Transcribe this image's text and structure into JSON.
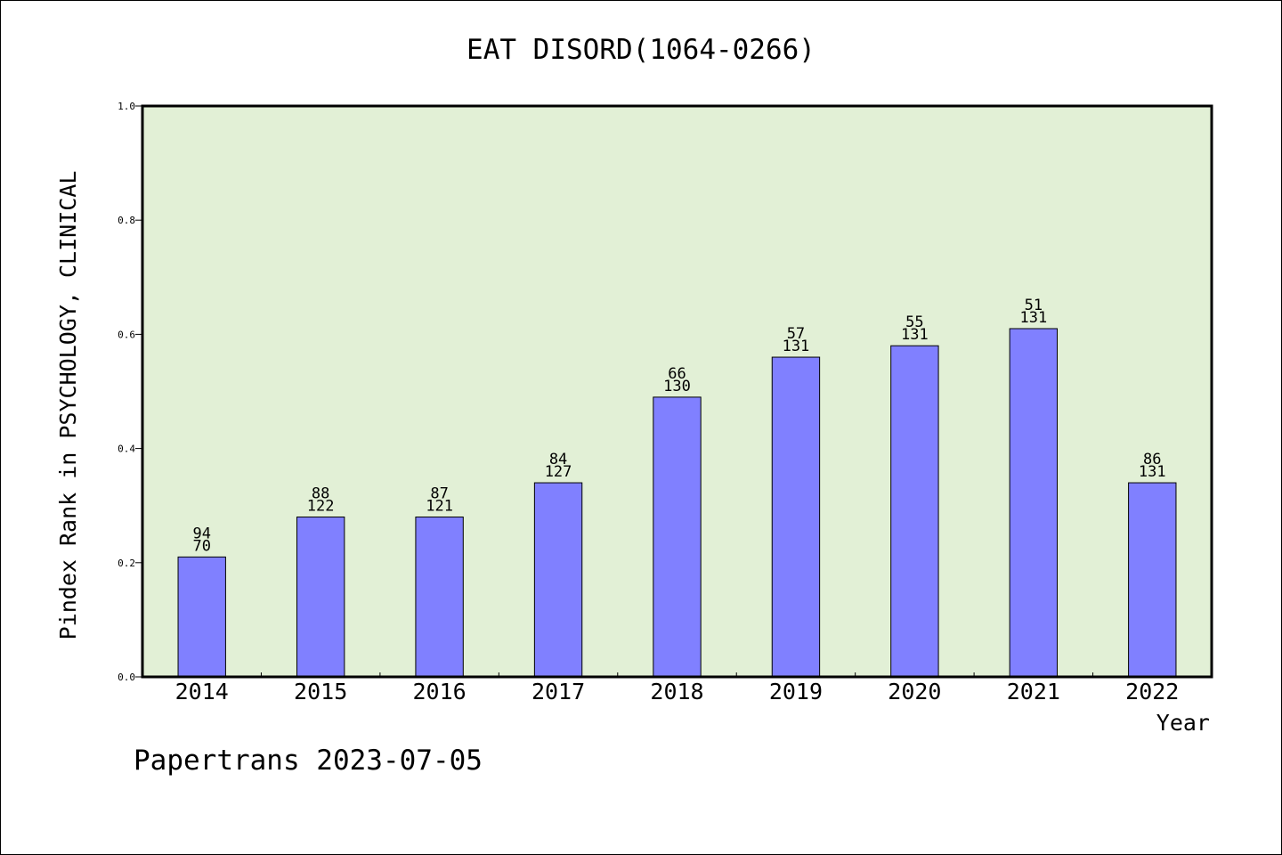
{
  "chart_data": {
    "type": "bar",
    "title": "EAT DISORD(1064-0266)",
    "xlabel": "Year",
    "ylabel": "Pindex Rank in PSYCHOLOGY, CLINICAL",
    "ylim": [
      0.0,
      1.0
    ],
    "yticks": [
      "0.0",
      "0.2",
      "0.4",
      "0.6",
      "0.8",
      "1.0"
    ],
    "categories": [
      "2014",
      "2015",
      "2016",
      "2017",
      "2018",
      "2019",
      "2020",
      "2021",
      "2022"
    ],
    "values": [
      0.21,
      0.28,
      0.28,
      0.34,
      0.49,
      0.56,
      0.58,
      0.61,
      0.34
    ],
    "bar_labels": [
      [
        "94",
        "70"
      ],
      [
        "88",
        "122"
      ],
      [
        "87",
        "121"
      ],
      [
        "84",
        "127"
      ],
      [
        "66",
        "130"
      ],
      [
        "57",
        "131"
      ],
      [
        "55",
        "131"
      ],
      [
        "51",
        "131"
      ],
      [
        "86",
        "131"
      ]
    ],
    "grid": false,
    "colors": {
      "bar": "#8080ff",
      "plot_bg": "#e2f0d6",
      "axis": "#000000"
    }
  },
  "footer": "Papertrans 2023-07-05"
}
